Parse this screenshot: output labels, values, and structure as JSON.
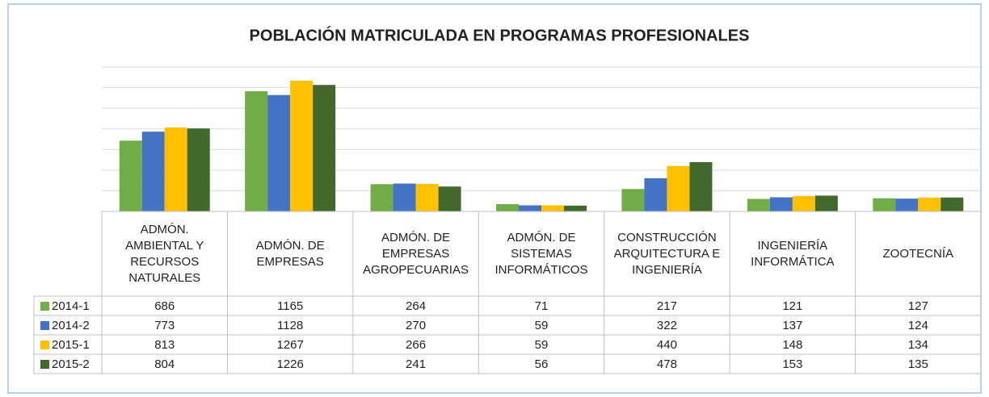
{
  "chart_data": {
    "type": "bar",
    "title": "POBLACIÓN MATRICULADA EN PROGRAMAS PROFESIONALES",
    "categories": [
      "ADMÓN. AMBIENTAL Y RECURSOS NATURALES",
      "ADMÓN. DE EMPRESAS",
      "ADMÓN. DE EMPRESAS AGROPECUARIAS",
      "ADMÓN. DE SISTEMAS INFORMÁTICOS",
      "CONSTRUCCIÓN ARQUITECTURA E INGENIERÍA",
      "INGENIERÍA INFORMÁTICA",
      "ZOOTECNÍA"
    ],
    "series": [
      {
        "name": "2014-1",
        "color": "#70ad47",
        "values": [
          686,
          1165,
          264,
          71,
          217,
          121,
          127
        ]
      },
      {
        "name": "2014-2",
        "color": "#4472c4",
        "values": [
          773,
          1128,
          270,
          59,
          322,
          137,
          124
        ]
      },
      {
        "name": "2015-1",
        "color": "#ffc000",
        "values": [
          813,
          1267,
          266,
          59,
          440,
          148,
          134
        ]
      },
      {
        "name": "2015-2",
        "color": "#43682b",
        "values": [
          804,
          1226,
          241,
          56,
          478,
          153,
          135
        ]
      }
    ],
    "ylim": [
      0,
      1400
    ],
    "yticks": [
      0,
      200,
      400,
      600,
      800,
      1000,
      1200,
      1400
    ],
    "grid": true
  }
}
